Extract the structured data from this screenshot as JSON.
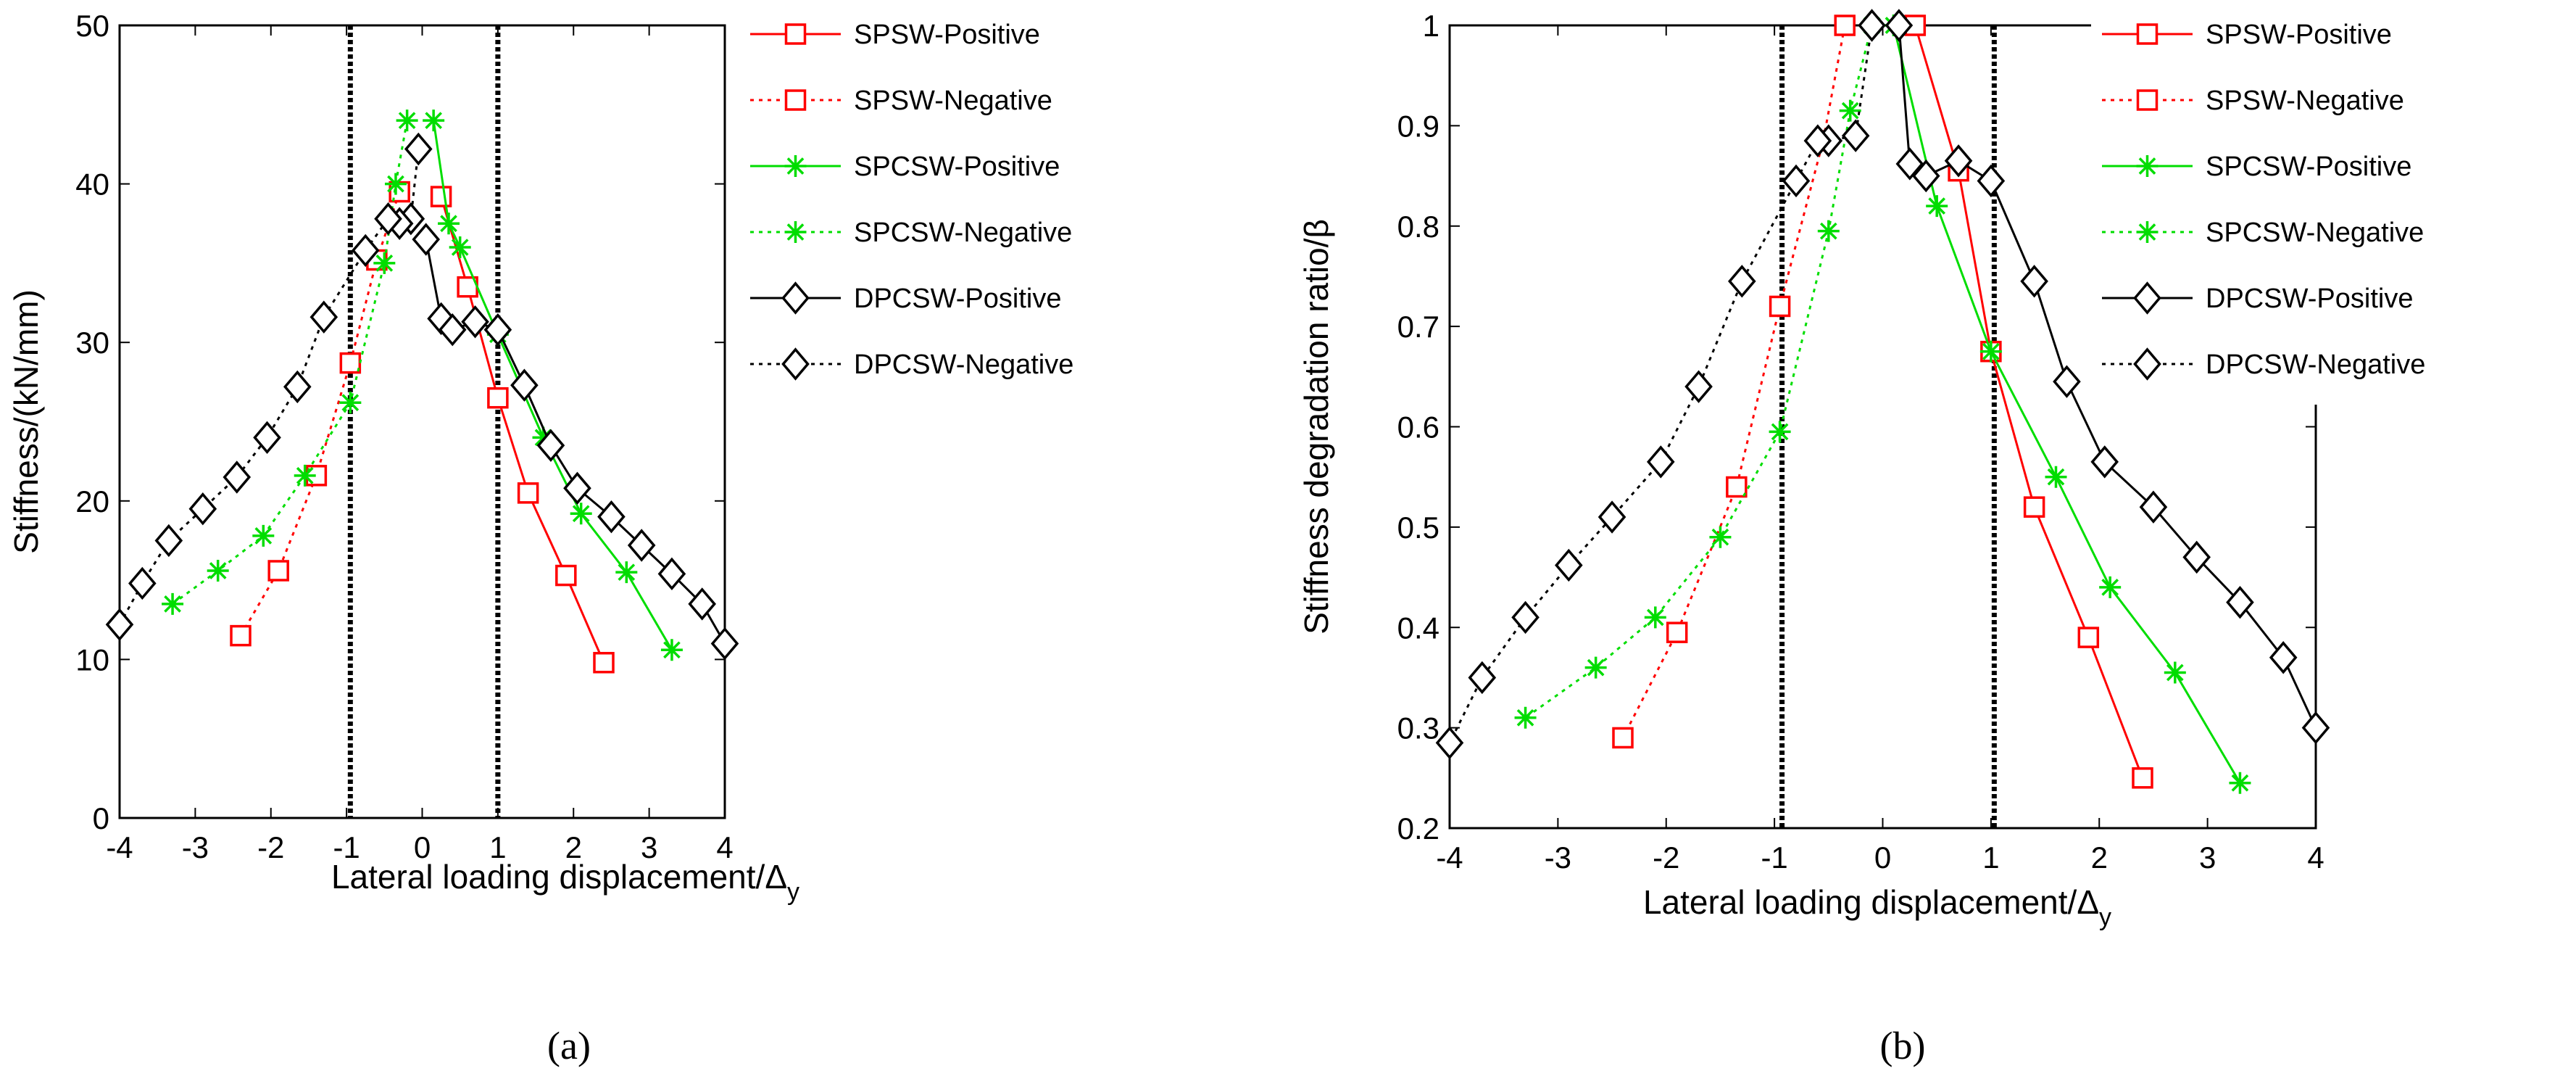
{
  "chart_data": [
    {
      "type": "line",
      "panel_label": "(a)",
      "xlabel": "Lateral loading displacement/Δy",
      "xlabel_main": "Lateral loading displacement/Δ",
      "xlabel_sub": "y",
      "ylabel": "Stiffness/(kN/mm)",
      "xlim": [
        -4,
        4
      ],
      "ylim": [
        0,
        50
      ],
      "xticks": [
        "-4",
        "-3",
        "-2",
        "-1",
        "0",
        "1",
        "2",
        "3",
        "4"
      ],
      "yticks": [
        "0",
        "10",
        "20",
        "30",
        "40",
        "50"
      ],
      "vlines": [
        -0.95,
        1.0
      ],
      "legend_position": "top-right outside",
      "series": [
        {
          "name": "SPSW-Positive",
          "color": "#ff0000",
          "dash": "solid",
          "marker": "square",
          "x": [
            0.25,
            0.6,
            1.0,
            1.4,
            1.9,
            2.4
          ],
          "y": [
            39.2,
            33.5,
            26.5,
            20.5,
            15.3,
            9.8
          ]
        },
        {
          "name": "SPSW-Negative",
          "color": "#ff0000",
          "dash": "dotted",
          "marker": "square",
          "x": [
            -0.3,
            -0.6,
            -0.95,
            -1.4,
            -1.9,
            -2.4
          ],
          "y": [
            39.5,
            35.2,
            28.7,
            21.6,
            15.6,
            11.5
          ]
        },
        {
          "name": "SPCSW-Positive",
          "color": "#00dd00",
          "dash": "solid",
          "marker": "star",
          "x": [
            0.15,
            0.35,
            0.5,
            1.0,
            1.6,
            2.1,
            2.7,
            3.3
          ],
          "y": [
            44.0,
            37.5,
            36.0,
            30.5,
            24.0,
            19.2,
            15.5,
            10.6
          ]
        },
        {
          "name": "SPCSW-Negative",
          "color": "#00dd00",
          "dash": "dotted",
          "marker": "star",
          "x": [
            -0.2,
            -0.35,
            -0.5,
            -0.95,
            -1.55,
            -2.1,
            -2.7,
            -3.3
          ],
          "y": [
            44.0,
            40.0,
            35.0,
            26.2,
            21.6,
            17.8,
            15.6,
            13.5
          ]
        },
        {
          "name": "DPCSW-Positive",
          "color": "#000000",
          "dash": "solid",
          "marker": "diamond",
          "x": [
            0.05,
            0.25,
            0.4,
            0.7,
            1.0,
            1.35,
            1.7,
            2.05,
            2.5,
            2.9,
            3.3,
            3.7,
            4.0
          ],
          "y": [
            36.5,
            31.5,
            30.8,
            31.3,
            30.8,
            27.3,
            23.5,
            20.8,
            19.0,
            17.2,
            15.4,
            13.5,
            11.0
          ]
        },
        {
          "name": "DPCSW-Negative",
          "color": "#000000",
          "dash": "dotted",
          "marker": "diamond",
          "x": [
            -0.05,
            -0.15,
            -0.3,
            -0.45,
            -0.75,
            -1.3,
            -1.65,
            -2.05,
            -2.45,
            -2.9,
            -3.35,
            -3.7,
            -4.0
          ],
          "y": [
            42.2,
            37.8,
            37.5,
            37.8,
            35.8,
            31.6,
            27.2,
            24.0,
            21.5,
            19.5,
            17.5,
            14.8,
            12.2
          ]
        }
      ]
    },
    {
      "type": "line",
      "panel_label": "(b)",
      "xlabel": "Lateral loading displacement/Δy",
      "xlabel_main": "Lateral loading displacement/Δ",
      "xlabel_sub": "y",
      "ylabel": "Stiffness degradation ratio/β",
      "xlim": [
        -4,
        4
      ],
      "ylim": [
        0.2,
        1
      ],
      "xticks": [
        "-4",
        "-3",
        "-2",
        "-1",
        "0",
        "1",
        "2",
        "3",
        "4"
      ],
      "yticks": [
        "0.2",
        "0.3",
        "0.4",
        "0.5",
        "0.6",
        "0.7",
        "0.8",
        "0.9",
        "1"
      ],
      "vlines": [
        -0.93,
        1.03
      ],
      "legend_position": "top-right outside",
      "series": [
        {
          "name": "SPSW-Positive",
          "color": "#ff0000",
          "dash": "solid",
          "marker": "square",
          "x": [
            0.3,
            0.7,
            1.0,
            1.4,
            1.9,
            2.4
          ],
          "y": [
            1.0,
            0.855,
            0.675,
            0.52,
            0.39,
            0.25
          ]
        },
        {
          "name": "SPSW-Negative",
          "color": "#ff0000",
          "dash": "dotted",
          "marker": "square",
          "x": [
            -0.35,
            -0.55,
            -0.95,
            -1.35,
            -1.9,
            -2.4
          ],
          "y": [
            1.0,
            0.885,
            0.72,
            0.54,
            0.395,
            0.29
          ]
        },
        {
          "name": "SPCSW-Positive",
          "color": "#00dd00",
          "dash": "solid",
          "marker": "star",
          "x": [
            0.1,
            0.5,
            1.0,
            1.6,
            2.1,
            2.7,
            3.3
          ],
          "y": [
            1.0,
            0.82,
            0.675,
            0.55,
            0.44,
            0.355,
            0.245
          ]
        },
        {
          "name": "SPCSW-Negative",
          "color": "#00dd00",
          "dash": "dotted",
          "marker": "star",
          "x": [
            -0.1,
            -0.3,
            -0.5,
            -0.95,
            -1.5,
            -2.1,
            -2.65,
            -3.3
          ],
          "y": [
            1.0,
            0.915,
            0.795,
            0.595,
            0.49,
            0.41,
            0.36,
            0.31
          ]
        },
        {
          "name": "DPCSW-Positive",
          "color": "#000000",
          "dash": "solid",
          "marker": "diamond",
          "x": [
            0.15,
            0.25,
            0.4,
            0.7,
            1.0,
            1.4,
            1.7,
            2.05,
            2.5,
            2.9,
            3.3,
            3.7,
            4.0
          ],
          "y": [
            1.0,
            0.862,
            0.85,
            0.865,
            0.845,
            0.745,
            0.645,
            0.565,
            0.52,
            0.47,
            0.425,
            0.37,
            0.3
          ]
        },
        {
          "name": "DPCSW-Negative",
          "color": "#000000",
          "dash": "dotted",
          "marker": "diamond",
          "x": [
            -0.1,
            -0.25,
            -0.5,
            -0.6,
            -0.8,
            -1.3,
            -1.7,
            -2.05,
            -2.5,
            -2.9,
            -3.3,
            -3.7,
            -4.0
          ],
          "y": [
            1.0,
            0.89,
            0.885,
            0.885,
            0.845,
            0.745,
            0.64,
            0.565,
            0.51,
            0.462,
            0.41,
            0.35,
            0.285
          ]
        }
      ]
    }
  ]
}
